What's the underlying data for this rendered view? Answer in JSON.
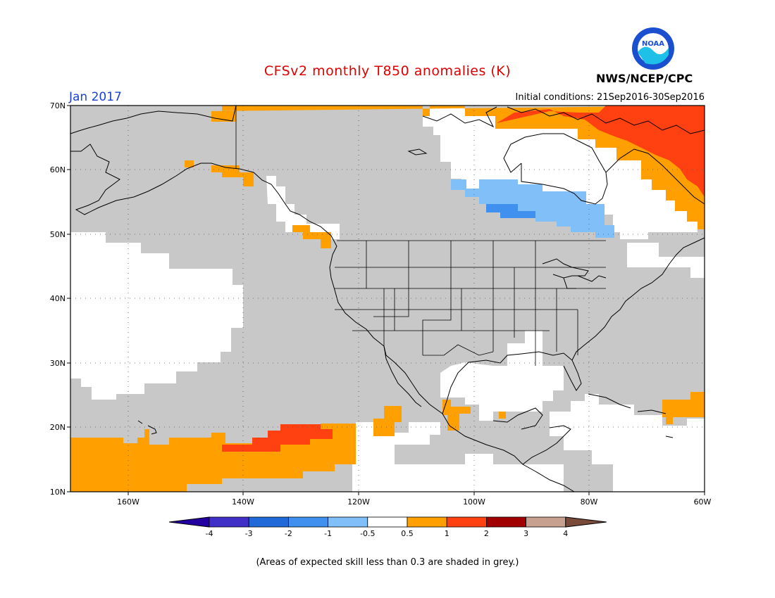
{
  "header": {
    "title": "CFSv2 monthly T850 anomalies (K)",
    "month": "Jan 2017",
    "initial_conditions": "Initial conditions: 21Sep2016-30Sep2016",
    "agency": "NWS/NCEP/CPC",
    "logo_text": "NOAA"
  },
  "map": {
    "region": "North America and NE Pacific",
    "lat_labels": [
      "70N",
      "60N",
      "50N",
      "40N",
      "30N",
      "20N",
      "10N"
    ],
    "lon_labels": [
      "160W",
      "140W",
      "120W",
      "100W",
      "80W",
      "60W"
    ],
    "lat_range": [
      10,
      70
    ],
    "lon_range": [
      -170,
      -60
    ],
    "grid": "dotted"
  },
  "colorbar": {
    "labels": [
      "-4",
      "-3",
      "-2",
      "-1",
      "-0.5",
      "0.5",
      "1",
      "2",
      "3",
      "4"
    ],
    "colors": [
      "#2200a0",
      "#4030c8",
      "#1f6ad8",
      "#3f90ef",
      "#80bff8",
      "#ffffff",
      "#ffa000",
      "#ff4010",
      "#a00000",
      "#c8a090",
      "#7a4a3a"
    ]
  },
  "legend_colors": {
    "grey_low_skill": "#c8c8c8",
    "warm_0_5_to_1": "#ffa000",
    "warm_1_to_2": "#ff4010",
    "cool_minus1_to_minus0_5": "#80bff8",
    "cool_minus2_to_minus1": "#3f90ef"
  },
  "footnote": "(Areas of expected skill less than 0.3 are shaded in grey.)"
}
